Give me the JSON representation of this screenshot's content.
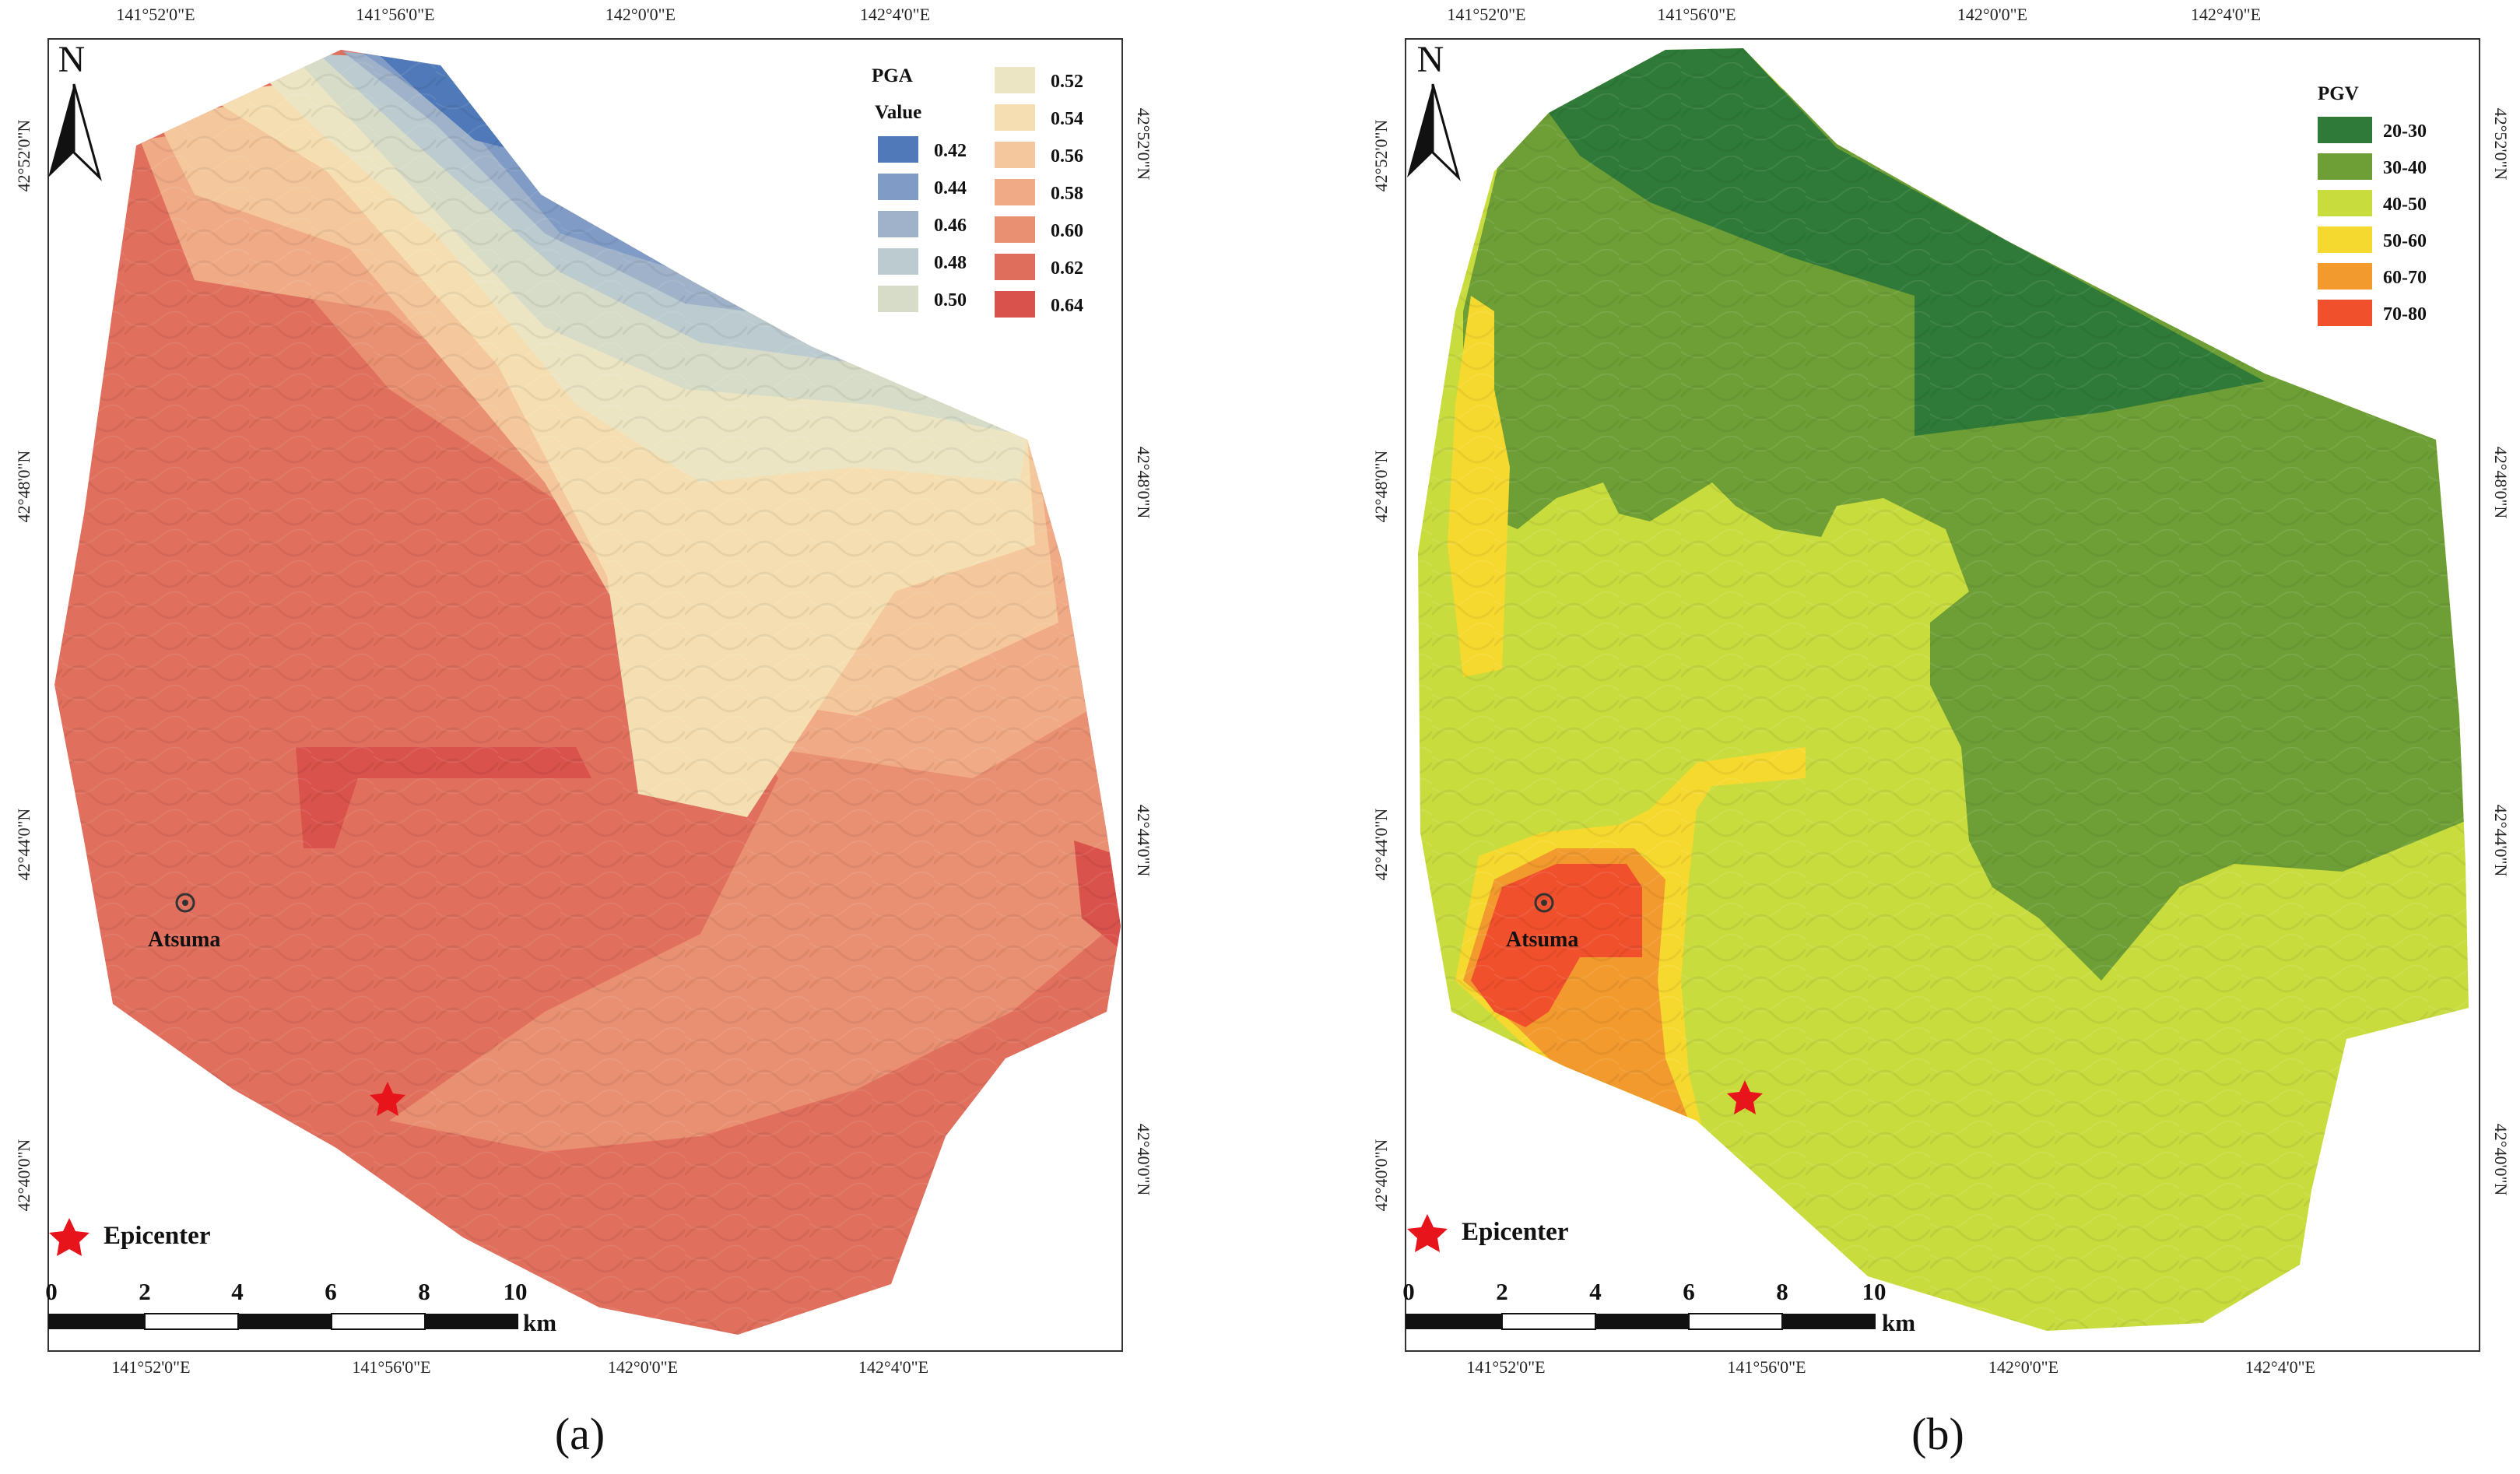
{
  "maps": [
    {
      "caption": "(a)",
      "top_ticks": [
        "141°52'0\"E",
        "141°56'0\"E",
        "142°0'0\"E",
        "142°4'0\"E"
      ],
      "bottom_ticks": [
        "141°52'0\"E",
        "141°56'0\"E",
        "142°0'0\"E",
        "142°4'0\"E"
      ],
      "left_ticks": [
        "42°52'0\"N",
        "42°48'0\"N",
        "42°44'0\"N",
        "42°40'0\"N"
      ],
      "right_ticks": [
        "42°52'0\"N",
        "42°48'0\"N",
        "42°44'0\"N",
        "42°40'0\"N"
      ],
      "legend": {
        "title1": "PGA",
        "title2": "Value",
        "classes": [
          {
            "label": "0.42",
            "color": "#4f79b8"
          },
          {
            "label": "0.44",
            "color": "#7f9bc6"
          },
          {
            "label": "0.46",
            "color": "#9fb2c9"
          },
          {
            "label": "0.48",
            "color": "#bccbcf"
          },
          {
            "label": "0.50",
            "color": "#d7dcc8"
          },
          {
            "label": "0.52",
            "color": "#ebe5c4"
          },
          {
            "label": "0.54",
            "color": "#f5dfb2"
          },
          {
            "label": "0.56",
            "color": "#f4c79c"
          },
          {
            "label": "0.58",
            "color": "#f0aa86"
          },
          {
            "label": "0.60",
            "color": "#e98f72"
          },
          {
            "label": "0.62",
            "color": "#df6f5c"
          },
          {
            "label": "0.64",
            "color": "#d9524c"
          }
        ]
      },
      "place_label": "Atsuma",
      "epicenter_label": "Epicenter",
      "scale_numbers": [
        "0",
        "2",
        "4",
        "6",
        "8",
        "10"
      ],
      "scale_unit": "km",
      "north_label": "N"
    },
    {
      "caption": "(b)",
      "top_ticks": [
        "141°52'0\"E",
        "141°56'0\"E",
        "142°0'0\"E",
        "142°4'0\"E"
      ],
      "bottom_ticks": [
        "141°52'0\"E",
        "141°56'0\"E",
        "142°0'0\"E",
        "142°4'0\"E"
      ],
      "left_ticks": [
        "42°52'0\"N",
        "42°48'0\"N",
        "42°44'0\"N",
        "42°40'0\"N"
      ],
      "right_ticks": [
        "42°52'0\"N",
        "42°48'0\"N",
        "42°44'0\"N",
        "42°40'0\"N"
      ],
      "legend": {
        "title1": "PGV",
        "title2": "",
        "classes": [
          {
            "label": "20-30",
            "color": "#2f7a38"
          },
          {
            "label": "30-40",
            "color": "#6e9f36"
          },
          {
            "label": "40-50",
            "color": "#c9dc3e"
          },
          {
            "label": "50-60",
            "color": "#f6d92f"
          },
          {
            "label": "60-70",
            "color": "#f29a2e"
          },
          {
            "label": "70-80",
            "color": "#f0502c"
          }
        ]
      },
      "place_label": "Atsuma",
      "epicenter_label": "Epicenter",
      "scale_numbers": [
        "0",
        "2",
        "4",
        "6",
        "8",
        "10"
      ],
      "scale_unit": "km",
      "north_label": "N"
    }
  ]
}
